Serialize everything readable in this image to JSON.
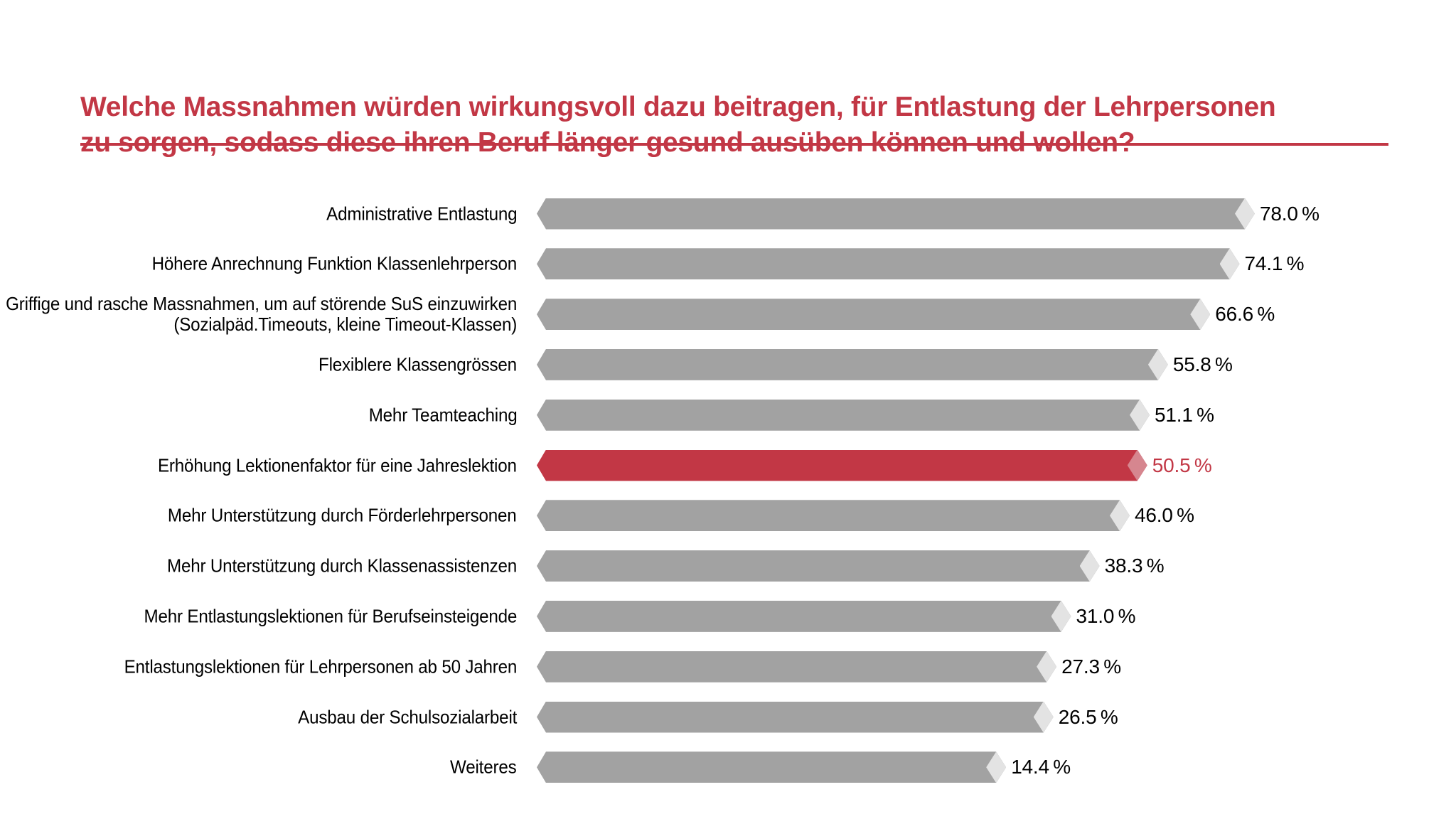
{
  "page": {
    "background": "#ffffff"
  },
  "header": {
    "title_line1": "Welche Massnahmen würden wirkungsvoll dazu beitragen, für Entlastung der Lehrpersonen",
    "title_line2": "zu sorgen, sodass diese ihren Beruf länger gesund ausüben können und wollen?"
  },
  "colors": {
    "accent_red": "#c23745",
    "bar_gray": "#a2a2a2",
    "bar_gray_tip": "#e3e3e3",
    "bar_red": "#c23745",
    "bar_red_tip": "#d6868f",
    "text_black": "#000000"
  },
  "chart_data": {
    "type": "bar",
    "orientation": "horizontal",
    "unit": "%",
    "title": "Welche Massnahmen würden wirkungsvoll dazu beitragen, für Entlastung der Lehrpersonen zu sorgen, sodass diese ihren Beruf länger gesund ausüben können und wollen?",
    "categories": [
      "Administrative Entlastung",
      "Höhere Anrechnung Funktion Klassenlehrperson",
      "Griffige und rasche Massnahmen, um auf störende SuS einzuwirken (Sozialpäd.Timeouts, kleine Timeout-Klassen)",
      "Flexiblere Klassengrössen",
      "Mehr Teamteaching",
      "Erhöhung Lektionenfaktor für eine Jahreslektion",
      "Mehr Unterstützung durch Förderlehrpersonen",
      "Mehr Unterstützung durch Klassenassistenzen",
      "Mehr Entlastungslektionen für Berufseinsteigende",
      "Entlastungslektionen für Lehrpersonen ab 50 Jahren",
      "Ausbau der Schulsozialarbeit",
      "Weiteres"
    ],
    "label_lines": [
      [
        "Administrative Entlastung"
      ],
      [
        "Höhere Anrechnung Funktion Klassenlehrperson"
      ],
      [
        "Griffige und rasche Massnahmen, um auf störende SuS einzuwirken",
        "(Sozialpäd.Timeouts, kleine Timeout-Klassen)"
      ],
      [
        "Flexiblere Klassengrössen"
      ],
      [
        "Mehr Teamteaching"
      ],
      [
        "Erhöhung Lektionenfaktor für eine Jahreslektion"
      ],
      [
        "Mehr Unterstützung durch Förderlehrpersonen"
      ],
      [
        "Mehr Unterstützung durch Klassenassistenzen"
      ],
      [
        "Mehr Entlastungslektionen für Berufseinsteigende"
      ],
      [
        "Entlastungslektionen für Lehrpersonen ab 50 Jahren"
      ],
      [
        "Ausbau der Schulsozialarbeit"
      ],
      [
        "Weiteres"
      ]
    ],
    "values": [
      78.0,
      74.1,
      66.6,
      55.8,
      51.1,
      50.5,
      46.0,
      38.3,
      31.0,
      27.3,
      26.5,
      14.4
    ],
    "value_labels": [
      "78.0 %",
      "74.1 %",
      "66.6 %",
      "55.8 %",
      "51.1 %",
      "50.5 %",
      "46.0 %",
      "38.3 %",
      "31.0 %",
      "27.3 %",
      "26.5 %",
      "14.4 %"
    ],
    "highlight_index": 5,
    "highlight_category": "Erhöhung Lektionenfaktor für eine Jahreslektion",
    "legend": "none",
    "axes": "hidden",
    "bar_style": "arrow bar pointed at both ends with light diamond tip"
  }
}
